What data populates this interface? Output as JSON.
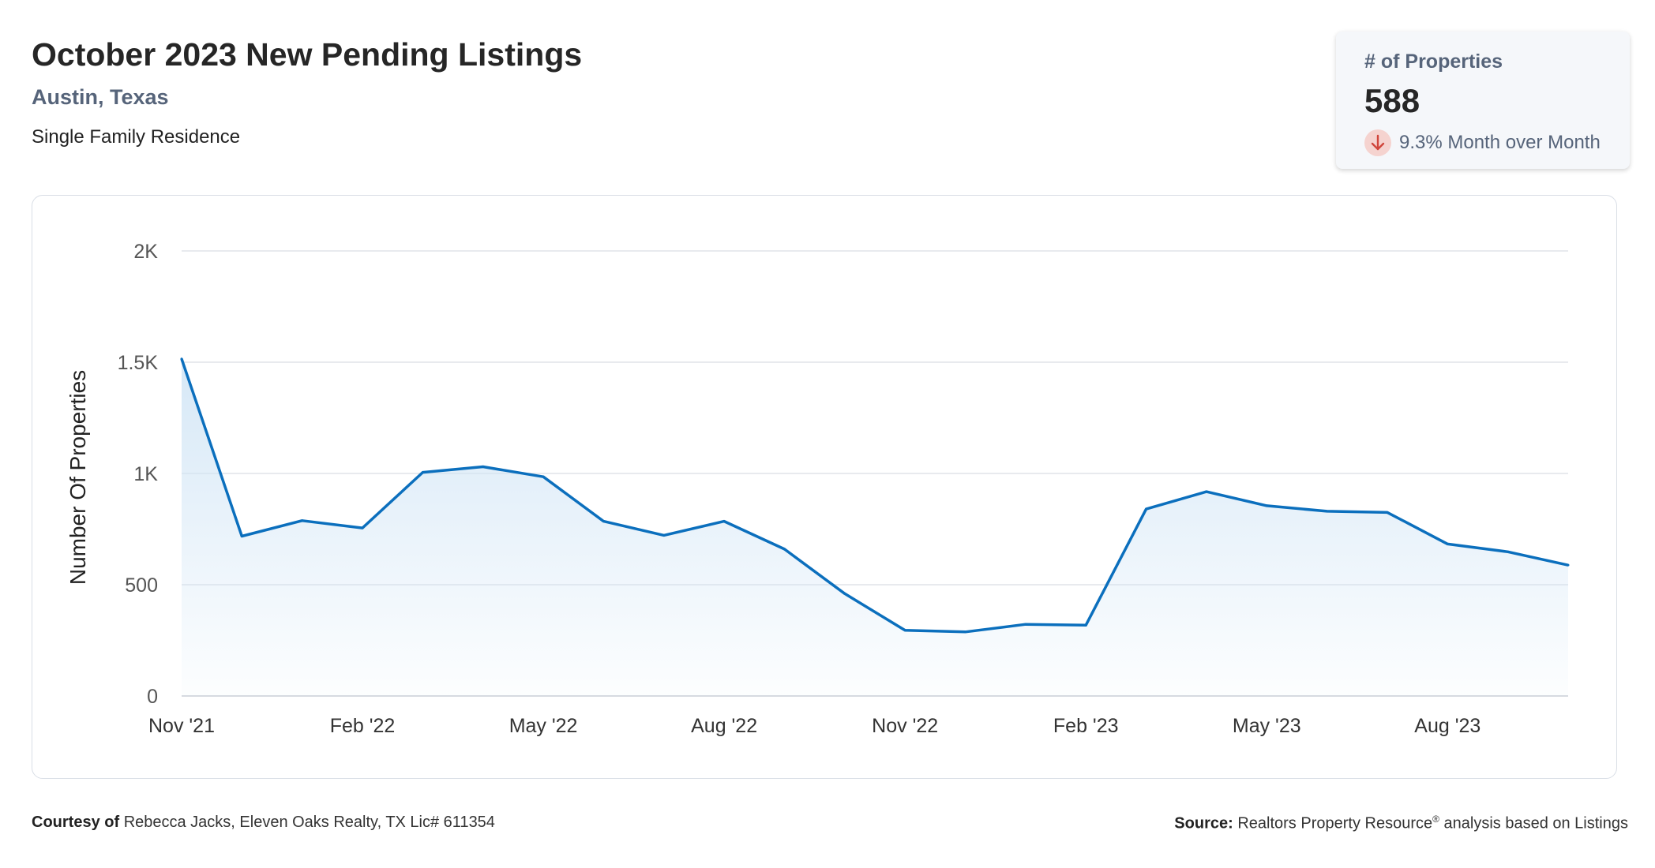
{
  "header": {
    "title": "October 2023 New Pending Listings",
    "location": "Austin, Texas",
    "property_type": "Single Family Residence"
  },
  "kpi": {
    "label": "# of Properties",
    "value": "588",
    "change": "9.3% Month over Month",
    "direction": "down",
    "icon": "arrow-down-icon"
  },
  "footer": {
    "courtesy_label": "Courtesy of",
    "courtesy_text": "Rebecca Jacks, Eleven Oaks Realty, TX Lic# 611354",
    "source_label": "Source:",
    "source_text": "Realtors Property Resource",
    "source_mark": "®",
    "source_suffix": "analysis based on Listings"
  },
  "colors": {
    "line": "#0b6fbd",
    "fill": "#cfe4f5",
    "down_badge": "#f5d3cf",
    "down_arrow": "#d0453b"
  },
  "chart_data": {
    "type": "area",
    "title": "",
    "xlabel": "",
    "ylabel": "Number Of Properties",
    "ylim": [
      0,
      2000
    ],
    "y_ticks": [
      0,
      500,
      1000,
      1500,
      2000
    ],
    "y_tick_labels": [
      "0",
      "500",
      "1K",
      "1.5K",
      "2K"
    ],
    "x_tick_labels": [
      "Nov '21",
      "Feb '22",
      "May '22",
      "Aug '22",
      "Nov '22",
      "Feb '23",
      "May '23",
      "Aug '23"
    ],
    "x_tick_index": [
      0,
      3,
      6,
      9,
      12,
      15,
      18,
      21
    ],
    "grid": true,
    "legend": "none",
    "categories": [
      "2021-11",
      "2021-12",
      "2022-01",
      "2022-02",
      "2022-03",
      "2022-04",
      "2022-05",
      "2022-06",
      "2022-07",
      "2022-08",
      "2022-09",
      "2022-10",
      "2022-11",
      "2022-12",
      "2023-01",
      "2023-02",
      "2023-03",
      "2023-04",
      "2023-05",
      "2023-06",
      "2023-07",
      "2023-08",
      "2023-09",
      "2023-10"
    ],
    "series": [
      {
        "values": [
          1515,
          718,
          788,
          755,
          1005,
          1030,
          985,
          785,
          722,
          785,
          660,
          460,
          295,
          288,
          322,
          318,
          840,
          918,
          855,
          830,
          825,
          683,
          648,
          588
        ]
      }
    ]
  }
}
